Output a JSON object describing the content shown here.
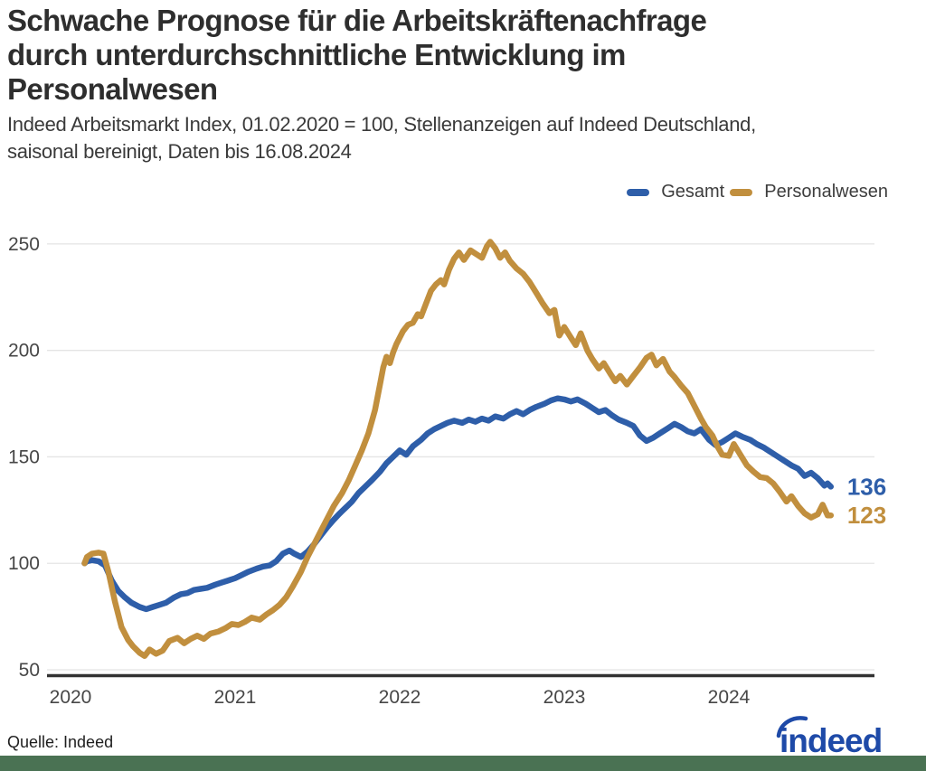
{
  "header": {
    "title_lines": [
      "Schwache Prognose für die Arbeitskräftenachfrage",
      "durch unterdurchschnittliche Entwicklung im",
      "Personalwesen"
    ],
    "subtitle_lines": [
      "Indeed Arbeitsmarkt Index, 01.02.2020 = 100, Stellenanzeigen auf Indeed Deutschland,",
      "saisonal bereinigt, Daten bis 16.08.2024"
    ]
  },
  "legend": {
    "items": [
      {
        "label": "Gesamt",
        "color": "#2e5ea9"
      },
      {
        "label": "Personalwesen",
        "color": "#c18f3e"
      }
    ]
  },
  "chart_data": {
    "type": "line",
    "title": "Schwache Prognose für die Arbeitskräftenachfrage durch unterdurchschnittliche Entwicklung im Personalwesen",
    "subtitle": "Indeed Arbeitsmarkt Index, 01.02.2020 = 100, Stellenanzeigen auf Indeed Deutschland, saisonal bereinigt, Daten bis 16.08.2024",
    "xlabel": "",
    "ylabel": "",
    "x_unit": "years_since_2020",
    "xticks": [
      2020,
      2021,
      2022,
      2023,
      2024
    ],
    "ylim": [
      50,
      250
    ],
    "yticks": [
      50,
      100,
      150,
      200,
      250
    ],
    "grid": true,
    "legend_position": "top-right",
    "axis_color": "#333333",
    "grid_color": "#e4e4e4",
    "tick_label_color": "#474747",
    "series": [
      {
        "name": "Gesamt",
        "color": "#2e5ea9",
        "stroke_width": 6.5,
        "end_label": "136",
        "points": [
          [
            0.085,
            100
          ],
          [
            0.1,
            101
          ],
          [
            0.13,
            101.5
          ],
          [
            0.17,
            101
          ],
          [
            0.21,
            99
          ],
          [
            0.25,
            92
          ],
          [
            0.29,
            87
          ],
          [
            0.33,
            84
          ],
          [
            0.37,
            81.5
          ],
          [
            0.42,
            79.5
          ],
          [
            0.46,
            78.5
          ],
          [
            0.5,
            79.5
          ],
          [
            0.54,
            80.5
          ],
          [
            0.58,
            81.5
          ],
          [
            0.63,
            84
          ],
          [
            0.67,
            85.5
          ],
          [
            0.71,
            86
          ],
          [
            0.75,
            87.5
          ],
          [
            0.79,
            88
          ],
          [
            0.83,
            88.5
          ],
          [
            0.88,
            90
          ],
          [
            0.92,
            91
          ],
          [
            0.96,
            92
          ],
          [
            1.0,
            93
          ],
          [
            1.04,
            94.5
          ],
          [
            1.08,
            96
          ],
          [
            1.13,
            97.5
          ],
          [
            1.17,
            98.5
          ],
          [
            1.21,
            99
          ],
          [
            1.25,
            101
          ],
          [
            1.29,
            104.5
          ],
          [
            1.33,
            106
          ],
          [
            1.36,
            104.5
          ],
          [
            1.4,
            103
          ],
          [
            1.44,
            105.5
          ],
          [
            1.48,
            109
          ],
          [
            1.52,
            113
          ],
          [
            1.56,
            117
          ],
          [
            1.6,
            120.5
          ],
          [
            1.63,
            123
          ],
          [
            1.67,
            126
          ],
          [
            1.71,
            129
          ],
          [
            1.75,
            133
          ],
          [
            1.79,
            136
          ],
          [
            1.83,
            139
          ],
          [
            1.88,
            143
          ],
          [
            1.92,
            147
          ],
          [
            1.96,
            150
          ],
          [
            2.0,
            153
          ],
          [
            2.04,
            151
          ],
          [
            2.08,
            155
          ],
          [
            2.13,
            158
          ],
          [
            2.17,
            161
          ],
          [
            2.21,
            163
          ],
          [
            2.25,
            164.5
          ],
          [
            2.29,
            166
          ],
          [
            2.33,
            167
          ],
          [
            2.38,
            166
          ],
          [
            2.42,
            167.5
          ],
          [
            2.46,
            166.5
          ],
          [
            2.5,
            168
          ],
          [
            2.54,
            167
          ],
          [
            2.58,
            169
          ],
          [
            2.63,
            168
          ],
          [
            2.67,
            170
          ],
          [
            2.71,
            171.5
          ],
          [
            2.75,
            170
          ],
          [
            2.79,
            172
          ],
          [
            2.83,
            173.5
          ],
          [
            2.88,
            175
          ],
          [
            2.92,
            176.5
          ],
          [
            2.96,
            177.5
          ],
          [
            3.0,
            177
          ],
          [
            3.04,
            176
          ],
          [
            3.08,
            177
          ],
          [
            3.13,
            175
          ],
          [
            3.17,
            173
          ],
          [
            3.21,
            171
          ],
          [
            3.25,
            172
          ],
          [
            3.29,
            169.5
          ],
          [
            3.33,
            167.5
          ],
          [
            3.38,
            166
          ],
          [
            3.42,
            164.5
          ],
          [
            3.46,
            160
          ],
          [
            3.5,
            157.5
          ],
          [
            3.54,
            159
          ],
          [
            3.58,
            161
          ],
          [
            3.63,
            163.5
          ],
          [
            3.67,
            165.5
          ],
          [
            3.71,
            164
          ],
          [
            3.75,
            162
          ],
          [
            3.79,
            161
          ],
          [
            3.83,
            163
          ],
          [
            3.88,
            158
          ],
          [
            3.92,
            155.5
          ],
          [
            3.96,
            157
          ],
          [
            4.0,
            159
          ],
          [
            4.04,
            161
          ],
          [
            4.08,
            159.5
          ],
          [
            4.13,
            158
          ],
          [
            4.17,
            156
          ],
          [
            4.21,
            154.5
          ],
          [
            4.25,
            152.5
          ],
          [
            4.29,
            150.5
          ],
          [
            4.33,
            148.5
          ],
          [
            4.38,
            146
          ],
          [
            4.42,
            144.5
          ],
          [
            4.46,
            141
          ],
          [
            4.5,
            142.5
          ],
          [
            4.54,
            140
          ],
          [
            4.58,
            136.5
          ],
          [
            4.6,
            137.5
          ],
          [
            4.62,
            136
          ]
        ]
      },
      {
        "name": "Personalwesen",
        "color": "#c18f3e",
        "stroke_width": 6.5,
        "end_label": "123",
        "points": [
          [
            0.085,
            100
          ],
          [
            0.1,
            103
          ],
          [
            0.13,
            104.5
          ],
          [
            0.17,
            105
          ],
          [
            0.2,
            104.5
          ],
          [
            0.23,
            96
          ],
          [
            0.27,
            82
          ],
          [
            0.31,
            70
          ],
          [
            0.35,
            64
          ],
          [
            0.38,
            61
          ],
          [
            0.42,
            58
          ],
          [
            0.45,
            56.5
          ],
          [
            0.48,
            59.5
          ],
          [
            0.52,
            57.5
          ],
          [
            0.56,
            59
          ],
          [
            0.6,
            63.5
          ],
          [
            0.65,
            65
          ],
          [
            0.69,
            62.5
          ],
          [
            0.73,
            64.5
          ],
          [
            0.77,
            66
          ],
          [
            0.81,
            64.5
          ],
          [
            0.85,
            67
          ],
          [
            0.9,
            68
          ],
          [
            0.94,
            69.5
          ],
          [
            0.98,
            71.5
          ],
          [
            1.02,
            71
          ],
          [
            1.06,
            72.5
          ],
          [
            1.1,
            74.5
          ],
          [
            1.15,
            73.5
          ],
          [
            1.19,
            76
          ],
          [
            1.23,
            78
          ],
          [
            1.27,
            80.5
          ],
          [
            1.31,
            84
          ],
          [
            1.35,
            89
          ],
          [
            1.4,
            96
          ],
          [
            1.44,
            103
          ],
          [
            1.48,
            109
          ],
          [
            1.52,
            115
          ],
          [
            1.56,
            121
          ],
          [
            1.6,
            127
          ],
          [
            1.65,
            133
          ],
          [
            1.69,
            139
          ],
          [
            1.73,
            146
          ],
          [
            1.77,
            153
          ],
          [
            1.81,
            161
          ],
          [
            1.85,
            172
          ],
          [
            1.88,
            184
          ],
          [
            1.9,
            192
          ],
          [
            1.92,
            197
          ],
          [
            1.94,
            194
          ],
          [
            1.96,
            199
          ],
          [
            1.98,
            203
          ],
          [
            2.02,
            209
          ],
          [
            2.05,
            212
          ],
          [
            2.08,
            213
          ],
          [
            2.11,
            217
          ],
          [
            2.13,
            216
          ],
          [
            2.16,
            222
          ],
          [
            2.19,
            228
          ],
          [
            2.22,
            231
          ],
          [
            2.25,
            233
          ],
          [
            2.27,
            231
          ],
          [
            2.3,
            238
          ],
          [
            2.33,
            243
          ],
          [
            2.36,
            246
          ],
          [
            2.39,
            242.5
          ],
          [
            2.43,
            247
          ],
          [
            2.47,
            245
          ],
          [
            2.5,
            243.5
          ],
          [
            2.53,
            249
          ],
          [
            2.55,
            251
          ],
          [
            2.58,
            248
          ],
          [
            2.61,
            243.5
          ],
          [
            2.64,
            246
          ],
          [
            2.67,
            242
          ],
          [
            2.71,
            238.5
          ],
          [
            2.75,
            236
          ],
          [
            2.79,
            232
          ],
          [
            2.83,
            227
          ],
          [
            2.87,
            222
          ],
          [
            2.91,
            217.5
          ],
          [
            2.94,
            219
          ],
          [
            2.97,
            207
          ],
          [
            3.0,
            211
          ],
          [
            3.04,
            206
          ],
          [
            3.07,
            202.5
          ],
          [
            3.1,
            208
          ],
          [
            3.14,
            200
          ],
          [
            3.17,
            196
          ],
          [
            3.21,
            191.5
          ],
          [
            3.24,
            194
          ],
          [
            3.28,
            189
          ],
          [
            3.31,
            185.5
          ],
          [
            3.34,
            188
          ],
          [
            3.38,
            184
          ],
          [
            3.42,
            188
          ],
          [
            3.46,
            192
          ],
          [
            3.5,
            196.5
          ],
          [
            3.53,
            198
          ],
          [
            3.56,
            193
          ],
          [
            3.6,
            196
          ],
          [
            3.64,
            190
          ],
          [
            3.67,
            187.5
          ],
          [
            3.71,
            183.5
          ],
          [
            3.75,
            180
          ],
          [
            3.79,
            174
          ],
          [
            3.83,
            168
          ],
          [
            3.86,
            164
          ],
          [
            3.9,
            160
          ],
          [
            3.93,
            155
          ],
          [
            3.96,
            151
          ],
          [
            4.0,
            150.5
          ],
          [
            4.03,
            156
          ],
          [
            4.07,
            151
          ],
          [
            4.11,
            146
          ],
          [
            4.15,
            143
          ],
          [
            4.19,
            140.5
          ],
          [
            4.23,
            140
          ],
          [
            4.27,
            137.5
          ],
          [
            4.31,
            133.5
          ],
          [
            4.35,
            129
          ],
          [
            4.38,
            131.5
          ],
          [
            4.42,
            127
          ],
          [
            4.46,
            123.5
          ],
          [
            4.5,
            121.5
          ],
          [
            4.54,
            123
          ],
          [
            4.57,
            127.5
          ],
          [
            4.6,
            122.5
          ],
          [
            4.62,
            122.5
          ]
        ]
      }
    ]
  },
  "footer": {
    "source": "Quelle: Indeed",
    "logo_text": "indeed",
    "logo_color": "#1e4aa8",
    "bar_color": "#4a7253"
  }
}
